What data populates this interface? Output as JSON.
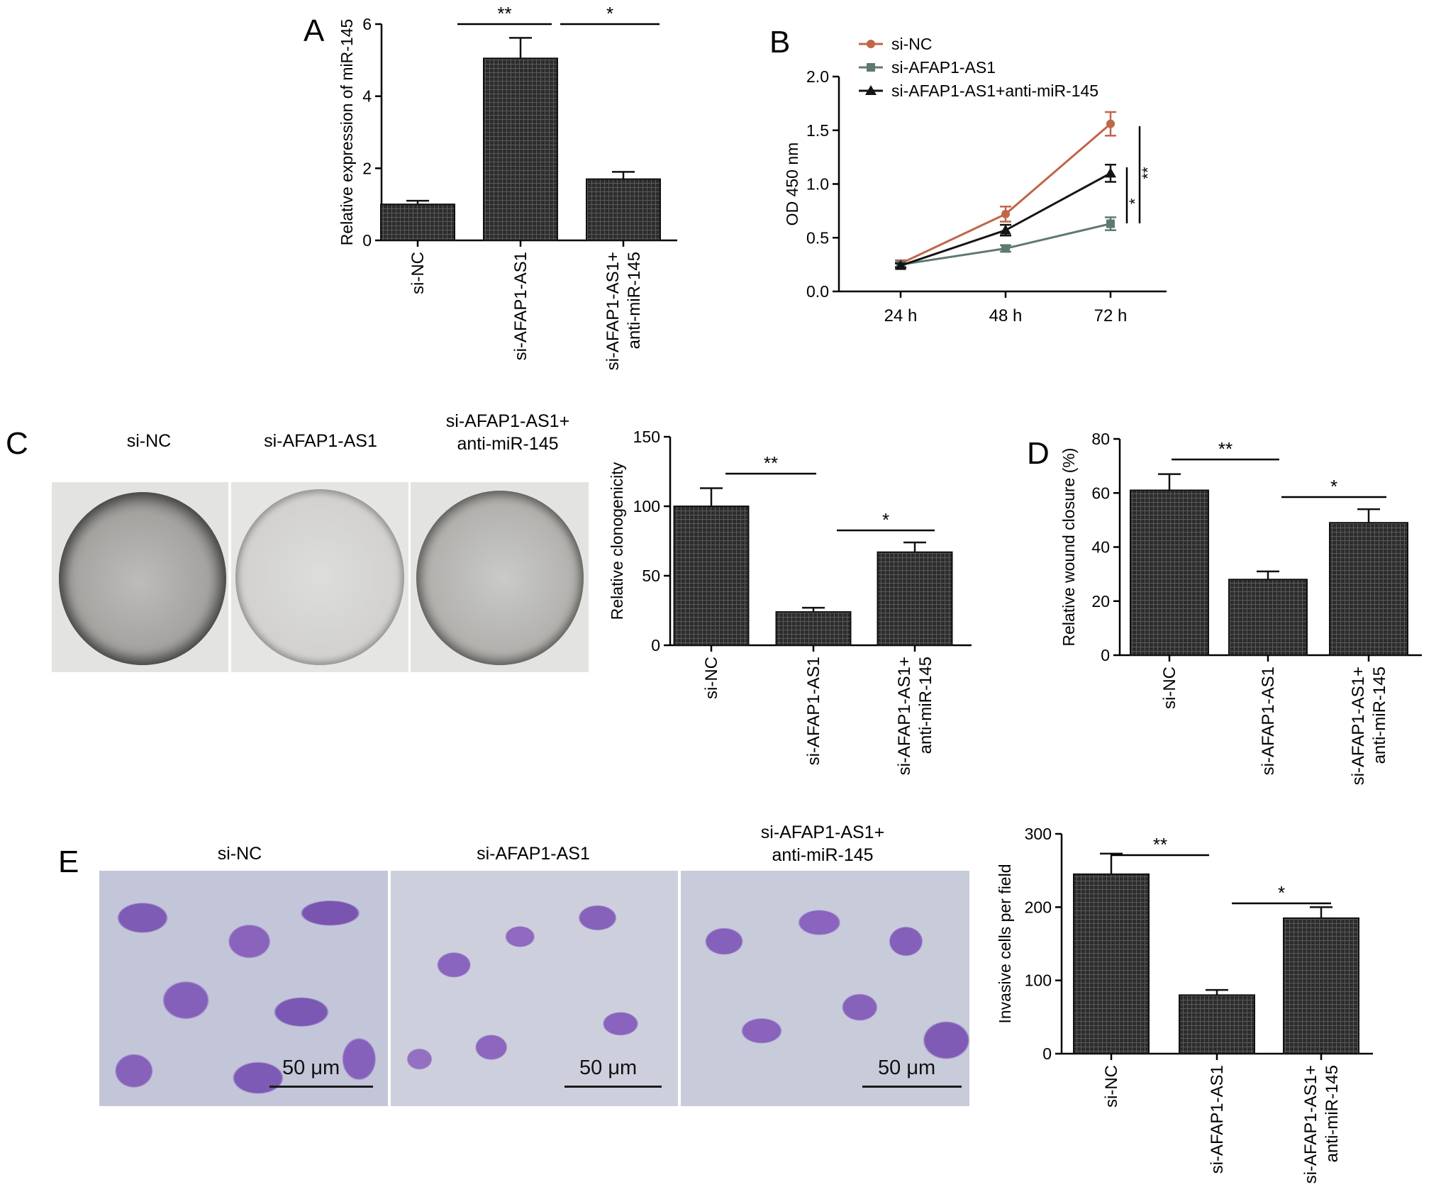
{
  "colors": {
    "bar": "#2a2a2a",
    "sinc": "#c0664a",
    "siafap": "#5e7a70",
    "combo": "#141414"
  },
  "panels": {
    "a": "A",
    "b": "B",
    "c": "C",
    "d": "D",
    "e": "E"
  },
  "groups": {
    "sinc": "si-NC",
    "siafap": "si-AFAP1-AS1",
    "combo_l1": "si-AFAP1-AS1+",
    "combo_l2": "anti-miR-145"
  },
  "scalebar_text": "50 μm",
  "chart_data": [
    {
      "id": "A",
      "type": "bar",
      "categories": [
        [
          "si-NC"
        ],
        [
          "si-AFAP1-AS1"
        ],
        [
          "si-AFAP1-AS1+",
          "anti-miR-145"
        ]
      ],
      "values": [
        1.0,
        5.05,
        1.7
      ],
      "errors": [
        0.1,
        0.57,
        0.2
      ],
      "ylabel": "Relative expression of miR-145",
      "ylim": [
        0,
        6
      ],
      "yticks": [
        0,
        2,
        4,
        6
      ],
      "significance": [
        {
          "from": 0,
          "to": 1,
          "label": "**"
        },
        {
          "from": 1,
          "to": 2,
          "label": "*"
        }
      ]
    },
    {
      "id": "B",
      "type": "line",
      "x": [
        "24 h",
        "48 h",
        "72 h"
      ],
      "ylabel": "OD 450 nm",
      "ylim": [
        0,
        2.0
      ],
      "yticks": [
        "0.0",
        "0.5",
        "1.0",
        "1.5",
        "2.0"
      ],
      "legend_position": "top",
      "series": [
        {
          "name": "si-NC",
          "marker": "circle",
          "values": [
            0.26,
            0.72,
            1.56
          ],
          "errors": [
            0.03,
            0.07,
            0.11
          ]
        },
        {
          "name": "si-AFAP1-AS1",
          "marker": "square",
          "values": [
            0.25,
            0.4,
            0.63
          ],
          "errors": [
            0.02,
            0.03,
            0.06
          ]
        },
        {
          "name": "si-AFAP1-AS1+anti-miR-145",
          "marker": "triangle",
          "values": [
            0.24,
            0.57,
            1.1
          ],
          "errors": [
            0.02,
            0.05,
            0.08
          ]
        }
      ],
      "significance": [
        {
          "label": "*",
          "between": [
            "si-AFAP1-AS1",
            "si-AFAP1-AS1+anti-miR-145"
          ]
        },
        {
          "label": "**",
          "between": [
            "si-AFAP1-AS1",
            "si-NC"
          ]
        }
      ]
    },
    {
      "id": "C",
      "type": "bar",
      "categories": [
        [
          "si-NC"
        ],
        [
          "si-AFAP1-AS1"
        ],
        [
          "si-AFAP1-AS1+",
          "anti-miR-145"
        ]
      ],
      "values": [
        100,
        24,
        67
      ],
      "errors": [
        13,
        3,
        7
      ],
      "ylabel": "Relative clonogenicity",
      "ylim": [
        0,
        150
      ],
      "yticks": [
        0,
        50,
        100,
        150
      ],
      "significance": [
        {
          "from": 0,
          "to": 1,
          "label": "**"
        },
        {
          "from": 1,
          "to": 2,
          "label": "*"
        }
      ]
    },
    {
      "id": "D",
      "type": "bar",
      "categories": [
        [
          "si-NC"
        ],
        [
          "si-AFAP1-AS1"
        ],
        [
          "si-AFAP1-AS1+",
          "anti-miR-145"
        ]
      ],
      "values": [
        61,
        28,
        49
      ],
      "errors": [
        6,
        3,
        5
      ],
      "ylabel": "Relative wound closure (%)",
      "ylim": [
        0,
        80
      ],
      "yticks": [
        0,
        20,
        40,
        60,
        80
      ],
      "significance": [
        {
          "from": 0,
          "to": 1,
          "label": "**"
        },
        {
          "from": 1,
          "to": 2,
          "label": "*"
        }
      ]
    },
    {
      "id": "E",
      "type": "bar",
      "categories": [
        [
          "si-NC"
        ],
        [
          "si-AFAP1-AS1"
        ],
        [
          "si-AFAP1-AS1+",
          "anti-miR-145"
        ]
      ],
      "values": [
        245,
        80,
        185
      ],
      "errors": [
        28,
        7,
        15
      ],
      "ylabel": "Invasive cells per field",
      "ylim": [
        0,
        300
      ],
      "yticks": [
        0,
        100,
        200,
        300
      ],
      "significance": [
        {
          "from": 0,
          "to": 1,
          "label": "**"
        },
        {
          "from": 1,
          "to": 2,
          "label": "*"
        }
      ]
    }
  ]
}
